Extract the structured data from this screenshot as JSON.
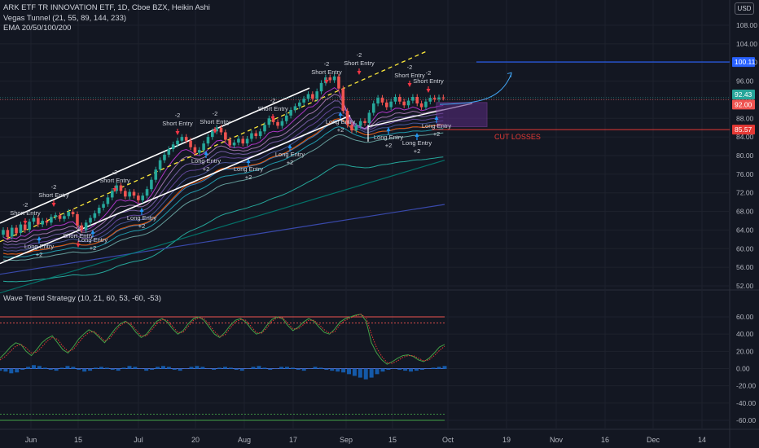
{
  "header": {
    "title": "ARK ETF TR INNOVATION ETF, 1D, Cboe BZX, Heikin Ashi",
    "indicator1": "Vegas Tunnel (21, 55, 89, 144, 233)",
    "indicator2": "EMA 20/50/100/200",
    "currency": "USD"
  },
  "colors": {
    "background": "#131722",
    "up": "#26a69a",
    "down": "#ef5350",
    "short_arrow": "#f23645",
    "long_arrow": "#2196f3",
    "cut_losses": "#e53935",
    "target": "#2962ff",
    "zone": "#5b2c82"
  },
  "chart_data": [
    {
      "type": "candlestick",
      "style": "Heikin Ashi",
      "ylim": [
        52,
        110
      ],
      "yticks": [
        "108.00",
        "104.00",
        "100.00",
        "96.00",
        "92.00",
        "88.00",
        "84.00",
        "80.00",
        "76.00",
        "72.00",
        "68.00",
        "64.00",
        "60.00",
        "56.00",
        "52.00"
      ],
      "xticks": [
        "Jun",
        "15",
        "Jul",
        "20",
        "Aug",
        "17",
        "Sep",
        "15",
        "Oct",
        "19",
        "Nov",
        "16",
        "Dec",
        "14"
      ],
      "candles": [
        [
          63.0,
          64.0
        ],
        [
          64.0,
          62.5
        ],
        [
          62.6,
          64.5
        ],
        [
          64.5,
          63.3
        ],
        [
          63.4,
          65.2
        ],
        [
          65.2,
          64.0
        ],
        [
          64.1,
          65.8
        ],
        [
          65.8,
          66.6
        ],
        [
          66.6,
          65.2
        ],
        [
          65.2,
          66.0
        ],
        [
          66.0,
          65.6
        ],
        [
          65.6,
          66.8
        ],
        [
          66.8,
          67.2
        ],
        [
          67.2,
          66.4
        ],
        [
          66.4,
          67.0
        ],
        [
          67.0,
          67.9
        ],
        [
          67.9,
          67.4
        ],
        [
          67.4,
          65.0
        ],
        [
          65.0,
          64.0
        ],
        [
          64.0,
          65.6
        ],
        [
          65.6,
          66.6
        ],
        [
          66.6,
          67.6
        ],
        [
          67.6,
          68.8
        ],
        [
          68.8,
          69.6
        ],
        [
          69.6,
          71.0
        ],
        [
          71.0,
          72.4
        ],
        [
          72.4,
          73.6
        ],
        [
          73.6,
          72.4
        ],
        [
          72.4,
          71.2
        ],
        [
          71.2,
          72.2
        ],
        [
          72.2,
          71.4
        ],
        [
          71.4,
          70.4
        ],
        [
          70.4,
          71.4
        ],
        [
          71.4,
          72.8
        ],
        [
          72.8,
          74.8
        ],
        [
          74.8,
          77.0
        ],
        [
          77.0,
          79.0
        ],
        [
          79.0,
          80.2
        ],
        [
          80.2,
          81.4
        ],
        [
          81.4,
          82.4
        ],
        [
          82.4,
          83.2
        ],
        [
          83.2,
          84.0
        ],
        [
          84.0,
          83.2
        ],
        [
          83.2,
          81.8
        ],
        [
          81.8,
          80.6
        ],
        [
          80.6,
          81.2
        ],
        [
          81.2,
          82.6
        ],
        [
          82.6,
          84.0
        ],
        [
          84.0,
          85.2
        ],
        [
          85.2,
          86.0
        ],
        [
          86.0,
          85.0
        ],
        [
          85.0,
          83.4
        ],
        [
          83.4,
          82.2
        ],
        [
          82.2,
          82.8
        ],
        [
          82.8,
          83.6
        ],
        [
          83.6,
          82.6
        ],
        [
          82.6,
          83.6
        ],
        [
          83.6,
          84.8
        ],
        [
          84.8,
          84.2
        ],
        [
          84.2,
          85.2
        ],
        [
          85.2,
          86.6
        ],
        [
          86.6,
          88.0
        ],
        [
          88.0,
          87.2
        ],
        [
          87.2,
          86.4
        ],
        [
          86.4,
          87.4
        ],
        [
          87.4,
          88.6
        ],
        [
          88.6,
          89.8
        ],
        [
          89.8,
          90.6
        ],
        [
          90.6,
          91.4
        ],
        [
          91.4,
          92.2
        ],
        [
          92.2,
          93.2
        ],
        [
          93.2,
          92.2
        ],
        [
          92.2,
          93.8
        ],
        [
          93.8,
          95.6
        ],
        [
          95.6,
          96.8
        ],
        [
          96.8,
          96.2
        ],
        [
          96.2,
          97.0
        ],
        [
          97.0,
          94.4
        ],
        [
          94.4,
          89.6
        ],
        [
          89.6,
          86.6
        ],
        [
          86.6,
          85.4
        ],
        [
          85.4,
          86.4
        ],
        [
          86.4,
          87.4
        ],
        [
          87.4,
          87.0
        ],
        [
          87.0,
          89.2
        ],
        [
          89.2,
          91.2
        ],
        [
          91.2,
          92.4
        ],
        [
          92.4,
          91.4
        ],
        [
          91.4,
          90.4
        ],
        [
          90.4,
          91.6
        ],
        [
          91.6,
          92.6
        ],
        [
          92.6,
          91.6
        ],
        [
          91.6,
          90.8
        ],
        [
          90.8,
          91.8
        ],
        [
          91.8,
          92.6
        ],
        [
          92.6,
          91.2
        ],
        [
          91.2,
          90.4
        ],
        [
          90.4,
          91.6
        ],
        [
          91.6,
          92.4
        ],
        [
          92.4,
          92.1
        ],
        [
          92.1,
          92.5
        ],
        [
          92.5,
          92.43
        ]
      ],
      "price_lines": [
        {
          "label": "100.11",
          "value": 100.11,
          "color": "#2962ff"
        },
        {
          "label": "92.43",
          "value": 92.43,
          "color": "#26a69a"
        },
        {
          "label": "92.00",
          "value": 92.0,
          "color": "#ef5350"
        },
        {
          "label": "85.57",
          "value": 85.57,
          "color": "#e53935"
        }
      ],
      "annotations": [
        "Short Entry",
        "-2",
        "Long Entry",
        "+2",
        "CUT LOSSES"
      ]
    },
    {
      "type": "line",
      "title": "Wave Trend Strategy (10, 21, 60, 53, -60, -53)",
      "ylim": [
        -66,
        68
      ],
      "yticks": [
        "60.00",
        "40.00",
        "20.00",
        "0.00",
        "-20.00",
        "-40.00",
        "-60.00"
      ],
      "levels": [
        60,
        53,
        -53,
        -60
      ],
      "series": [
        {
          "values": [
            12,
            18,
            25,
            30,
            28,
            20,
            15,
            22,
            30,
            35,
            38,
            30,
            22,
            18,
            25,
            34,
            40,
            45,
            42,
            36,
            30,
            38,
            46,
            52,
            55,
            50,
            42,
            36,
            40,
            48,
            55,
            58,
            54,
            46,
            40,
            44,
            52,
            58,
            60,
            56,
            48,
            40,
            36,
            42,
            50,
            56,
            58,
            54,
            46,
            40,
            42,
            50,
            57,
            60,
            58,
            50,
            44,
            48,
            54,
            58,
            55,
            48,
            42,
            40,
            46,
            54,
            58,
            60,
            62,
            63,
            55,
            30,
            18,
            10,
            5,
            8,
            12,
            15,
            16,
            14,
            10,
            8,
            12,
            18,
            25,
            28
          ]
        },
        {
          "values": [
            10,
            14,
            20,
            26,
            28,
            24,
            18,
            19,
            25,
            32,
            36,
            34,
            26,
            20,
            22,
            30,
            37,
            42,
            43,
            38,
            32,
            35,
            43,
            50,
            54,
            52,
            45,
            38,
            38,
            45,
            52,
            57,
            56,
            49,
            42,
            42,
            49,
            56,
            59,
            58,
            51,
            43,
            37,
            39,
            47,
            54,
            57,
            56,
            49,
            42,
            41,
            47,
            55,
            59,
            59,
            53,
            46,
            46,
            51,
            56,
            56,
            51,
            45,
            41,
            43,
            51,
            56,
            59,
            61,
            63,
            59,
            40,
            24,
            14,
            7,
            6,
            9,
            13,
            15,
            15,
            12,
            9,
            10,
            15,
            21,
            26
          ]
        }
      ],
      "histogram": [
        -2,
        -3,
        -5,
        -4,
        -1,
        2,
        4,
        3,
        1,
        -1,
        -2,
        1,
        3,
        2,
        -1,
        -3,
        -2,
        1,
        2,
        1,
        -1,
        -2,
        1,
        3,
        2,
        0,
        -2,
        -1,
        2,
        3,
        2,
        -1,
        -2,
        0,
        2,
        3,
        2,
        0,
        -1,
        1,
        2,
        1,
        -1,
        -2,
        0,
        2,
        3,
        1,
        -1,
        0,
        2,
        2,
        1,
        -1,
        -2,
        0,
        2,
        1,
        -1,
        -2,
        -3,
        -4,
        -6,
        -8,
        -10,
        -12,
        -10,
        -6,
        -3,
        -1,
        0,
        -1,
        -2,
        -3,
        -2,
        -1,
        0,
        1,
        2,
        3
      ]
    }
  ]
}
